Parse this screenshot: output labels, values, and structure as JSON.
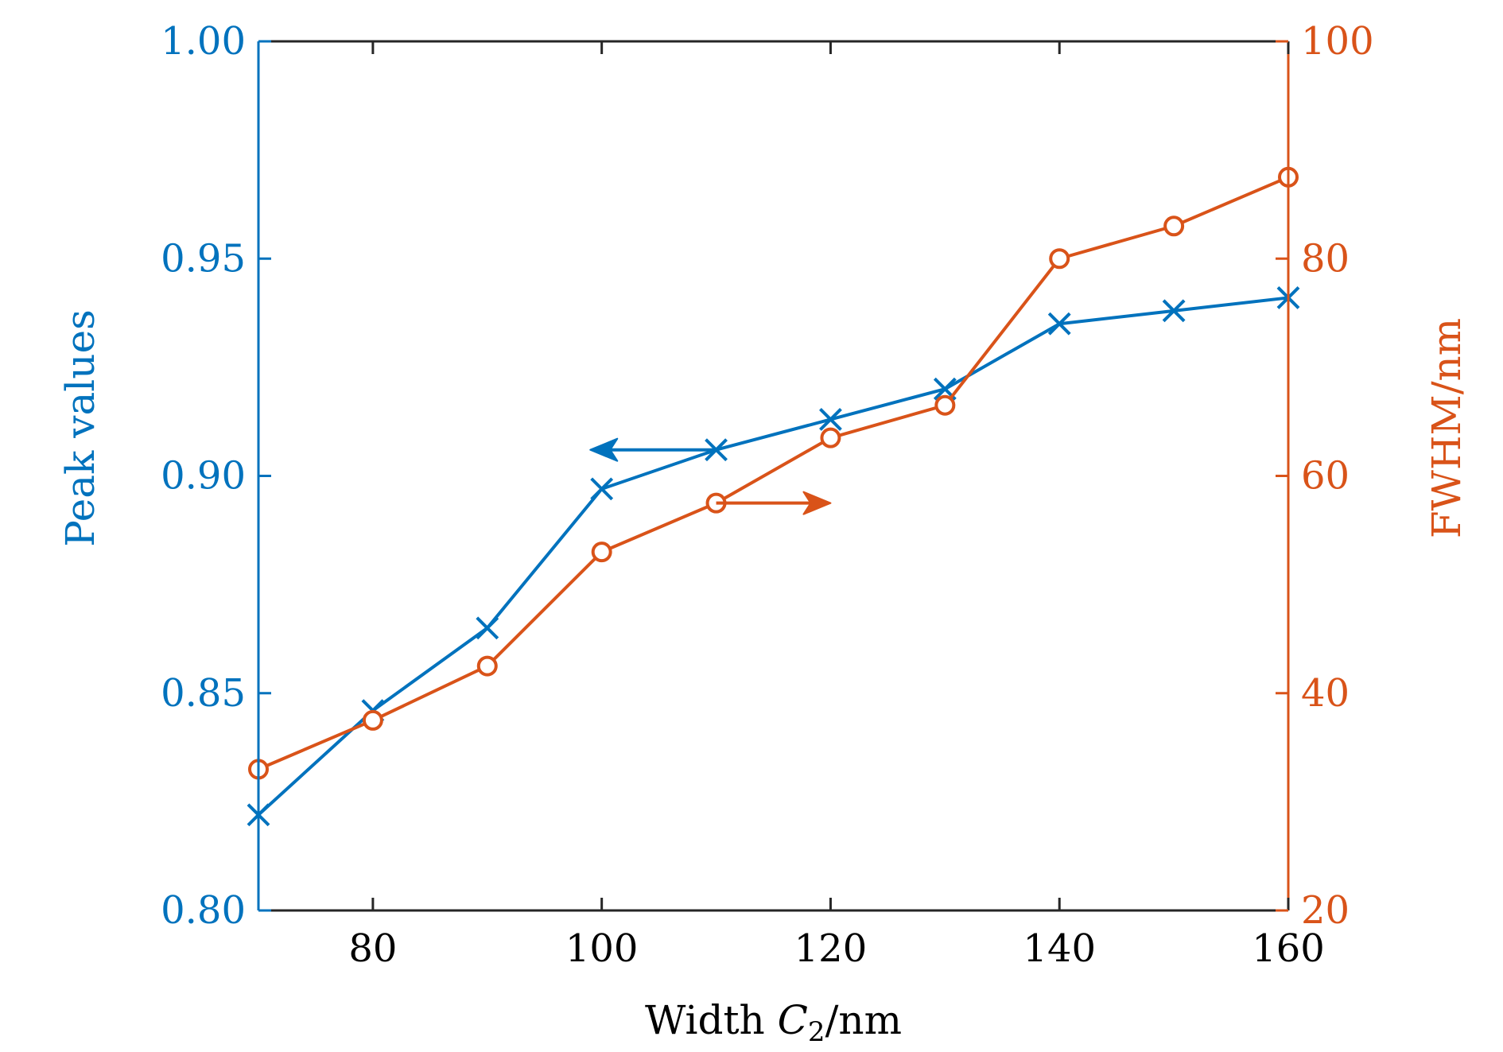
{
  "chart_data": {
    "type": "line",
    "x": [
      70,
      80,
      90,
      100,
      110,
      120,
      130,
      140,
      150,
      160
    ],
    "xlabel": {
      "prefix": "Width ",
      "var": "C",
      "sub": "2",
      "suffix": "/nm"
    },
    "xlim": [
      70,
      160
    ],
    "xticks": [
      "80",
      "100",
      "120",
      "140",
      "160"
    ],
    "ylabel_left": "Peak values",
    "ylim_left": [
      0.8,
      1.0
    ],
    "yticks_left": [
      "0.80",
      "0.85",
      "0.90",
      "0.95",
      "1.00"
    ],
    "ylabel_right": "FWHM/nm",
    "ylim_right": [
      20,
      100
    ],
    "yticks_right": [
      "20",
      "40",
      "60",
      "80",
      "100"
    ],
    "grid": false,
    "series": [
      {
        "axis": "left",
        "marker": "x",
        "color": "#0072BD",
        "values": [
          0.822,
          0.846,
          0.865,
          0.897,
          0.906,
          0.913,
          0.92,
          0.935,
          0.938,
          0.941
        ]
      },
      {
        "axis": "right",
        "marker": "o",
        "color": "#D95319",
        "values": [
          33,
          37.5,
          42.5,
          53,
          57.5,
          63.5,
          66.5,
          80,
          83,
          87.5
        ]
      }
    ],
    "annotations": [
      {
        "type": "arrow",
        "direction": "left",
        "series": 0,
        "from_x": 110,
        "to_x": 99,
        "y": 0.906
      },
      {
        "type": "arrow",
        "direction": "right",
        "series": 1,
        "from_x": 110,
        "to_x": 120,
        "y": 57.5
      }
    ]
  }
}
